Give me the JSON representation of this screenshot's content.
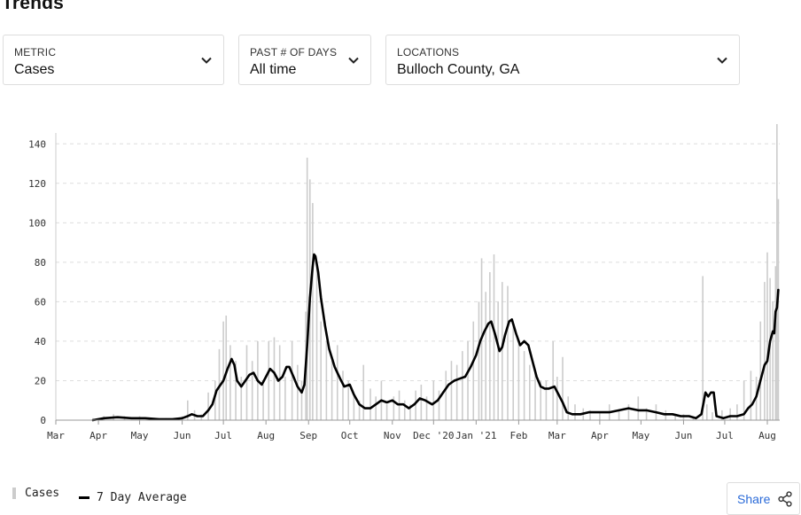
{
  "page": {
    "title": "Trends"
  },
  "filters": {
    "metric": {
      "label": "METRIC",
      "value": "Cases"
    },
    "days": {
      "label": "PAST # OF DAYS",
      "value": "All time"
    },
    "locations": {
      "label": "LOCATIONS",
      "value": "Bulloch County, GA"
    }
  },
  "legend": {
    "cases": "Cases",
    "avg": "7 Day Average"
  },
  "share": {
    "label": "Share"
  },
  "icons": {
    "dropdown": "chevron-down-icon",
    "share": "share-icon"
  },
  "colors": {
    "bars": "#cccccc",
    "line": "#000000",
    "share_text": "#2a6ad8",
    "grid": "#dddddd"
  },
  "chart_data": {
    "type": "bar",
    "title": "",
    "xlabel": "",
    "ylabel": "",
    "ylim": [
      0,
      150
    ],
    "grid": true,
    "legend_position": "bottom-left",
    "y_ticks": [
      0,
      20,
      40,
      60,
      80,
      100,
      120,
      140
    ],
    "x_ticks": [
      {
        "label": "Mar",
        "date": "2020-03-01"
      },
      {
        "label": "Apr",
        "date": "2020-04-01"
      },
      {
        "label": "May",
        "date": "2020-05-01"
      },
      {
        "label": "Jun",
        "date": "2020-06-01"
      },
      {
        "label": "Jul",
        "date": "2020-07-01"
      },
      {
        "label": "Aug",
        "date": "2020-08-01"
      },
      {
        "label": "Sep",
        "date": "2020-09-01"
      },
      {
        "label": "Oct",
        "date": "2020-10-01"
      },
      {
        "label": "Nov",
        "date": "2020-11-01"
      },
      {
        "label": "Dec '20",
        "date": "2020-12-01"
      },
      {
        "label": "Jan '21",
        "date": "2021-01-01"
      },
      {
        "label": "Feb",
        "date": "2021-02-01"
      },
      {
        "label": "Mar",
        "date": "2021-03-01"
      },
      {
        "label": "Apr",
        "date": "2021-04-01"
      },
      {
        "label": "May",
        "date": "2021-05-01"
      },
      {
        "label": "Jun",
        "date": "2021-06-01"
      },
      {
        "label": "Jul",
        "date": "2021-07-01"
      },
      {
        "label": "Aug",
        "date": "2021-08-01"
      }
    ],
    "series": [
      {
        "name": "Cases",
        "type": "bar",
        "points": [
          [
            "2020-03-28",
            1
          ],
          [
            "2020-04-05",
            2
          ],
          [
            "2020-04-12",
            3
          ],
          [
            "2020-04-20",
            2
          ],
          [
            "2020-05-01",
            2
          ],
          [
            "2020-05-10",
            1
          ],
          [
            "2020-05-20",
            1
          ],
          [
            "2020-06-01",
            2
          ],
          [
            "2020-06-05",
            10
          ],
          [
            "2020-06-10",
            5
          ],
          [
            "2020-06-15",
            3
          ],
          [
            "2020-06-20",
            14
          ],
          [
            "2020-06-25",
            20
          ],
          [
            "2020-06-28",
            36
          ],
          [
            "2020-07-01",
            50
          ],
          [
            "2020-07-03",
            53
          ],
          [
            "2020-07-06",
            38
          ],
          [
            "2020-07-10",
            30
          ],
          [
            "2020-07-14",
            22
          ],
          [
            "2020-07-18",
            38
          ],
          [
            "2020-07-22",
            30
          ],
          [
            "2020-07-26",
            40
          ],
          [
            "2020-07-30",
            18
          ],
          [
            "2020-08-03",
            40
          ],
          [
            "2020-08-07",
            42
          ],
          [
            "2020-08-11",
            38
          ],
          [
            "2020-08-15",
            22
          ],
          [
            "2020-08-20",
            40
          ],
          [
            "2020-08-24",
            28
          ],
          [
            "2020-08-27",
            20
          ],
          [
            "2020-08-30",
            55
          ],
          [
            "2020-08-31",
            133
          ],
          [
            "2020-09-02",
            122
          ],
          [
            "2020-09-04",
            110
          ],
          [
            "2020-09-07",
            80
          ],
          [
            "2020-09-10",
            50
          ],
          [
            "2020-09-14",
            40
          ],
          [
            "2020-09-18",
            30
          ],
          [
            "2020-09-22",
            38
          ],
          [
            "2020-09-26",
            25
          ],
          [
            "2020-09-30",
            20
          ],
          [
            "2020-10-04",
            12
          ],
          [
            "2020-10-08",
            10
          ],
          [
            "2020-10-11",
            28
          ],
          [
            "2020-10-16",
            16
          ],
          [
            "2020-10-20",
            12
          ],
          [
            "2020-10-24",
            20
          ],
          [
            "2020-10-28",
            8
          ],
          [
            "2020-11-02",
            12
          ],
          [
            "2020-11-06",
            15
          ],
          [
            "2020-11-10",
            10
          ],
          [
            "2020-11-14",
            8
          ],
          [
            "2020-11-18",
            15
          ],
          [
            "2020-11-22",
            18
          ],
          [
            "2020-11-26",
            12
          ],
          [
            "2020-12-01",
            20
          ],
          [
            "2020-12-05",
            15
          ],
          [
            "2020-12-10",
            25
          ],
          [
            "2020-12-14",
            30
          ],
          [
            "2020-12-18",
            28
          ],
          [
            "2020-12-22",
            35
          ],
          [
            "2020-12-26",
            40
          ],
          [
            "2020-12-30",
            50
          ],
          [
            "2021-01-03",
            60
          ],
          [
            "2021-01-05",
            82
          ],
          [
            "2021-01-08",
            65
          ],
          [
            "2021-01-11",
            75
          ],
          [
            "2021-01-14",
            84
          ],
          [
            "2021-01-17",
            60
          ],
          [
            "2021-01-20",
            70
          ],
          [
            "2021-01-24",
            68
          ],
          [
            "2021-01-28",
            48
          ],
          [
            "2021-02-01",
            40
          ],
          [
            "2021-02-05",
            35
          ],
          [
            "2021-02-09",
            28
          ],
          [
            "2021-02-13",
            25
          ],
          [
            "2021-02-17",
            20
          ],
          [
            "2021-02-21",
            20
          ],
          [
            "2021-02-26",
            40
          ],
          [
            "2021-03-01",
            22
          ],
          [
            "2021-03-05",
            32
          ],
          [
            "2021-03-09",
            12
          ],
          [
            "2021-03-14",
            8
          ],
          [
            "2021-03-20",
            6
          ],
          [
            "2021-03-25",
            5
          ],
          [
            "2021-04-01",
            4
          ],
          [
            "2021-04-08",
            8
          ],
          [
            "2021-04-15",
            5
          ],
          [
            "2021-04-22",
            8
          ],
          [
            "2021-04-29",
            12
          ],
          [
            "2021-05-05",
            6
          ],
          [
            "2021-05-12",
            8
          ],
          [
            "2021-05-19",
            5
          ],
          [
            "2021-05-26",
            3
          ],
          [
            "2021-06-01",
            3
          ],
          [
            "2021-06-08",
            2
          ],
          [
            "2021-06-15",
            73
          ],
          [
            "2021-06-18",
            8
          ],
          [
            "2021-06-22",
            4
          ],
          [
            "2021-06-29",
            5
          ],
          [
            "2021-07-05",
            6
          ],
          [
            "2021-07-10",
            8
          ],
          [
            "2021-07-15",
            20
          ],
          [
            "2021-07-20",
            25
          ],
          [
            "2021-07-24",
            22
          ],
          [
            "2021-07-27",
            50
          ],
          [
            "2021-07-30",
            70
          ],
          [
            "2021-08-01",
            85
          ],
          [
            "2021-08-03",
            72
          ],
          [
            "2021-08-05",
            60
          ],
          [
            "2021-08-07",
            78
          ],
          [
            "2021-08-08",
            150
          ],
          [
            "2021-08-09",
            112
          ]
        ]
      },
      {
        "name": "7 Day Average",
        "type": "line",
        "points": [
          [
            "2020-03-28",
            0
          ],
          [
            "2020-04-05",
            1
          ],
          [
            "2020-04-15",
            1.5
          ],
          [
            "2020-04-25",
            1
          ],
          [
            "2020-05-05",
            1
          ],
          [
            "2020-05-15",
            0.5
          ],
          [
            "2020-05-25",
            0.5
          ],
          [
            "2020-06-01",
            1
          ],
          [
            "2020-06-05",
            2
          ],
          [
            "2020-06-08",
            3
          ],
          [
            "2020-06-12",
            2
          ],
          [
            "2020-06-16",
            2
          ],
          [
            "2020-06-20",
            5
          ],
          [
            "2020-06-23",
            8
          ],
          [
            "2020-06-26",
            15
          ],
          [
            "2020-06-29",
            18
          ],
          [
            "2020-07-01",
            20
          ],
          [
            "2020-07-04",
            26
          ],
          [
            "2020-07-07",
            31
          ],
          [
            "2020-07-09",
            28
          ],
          [
            "2020-07-11",
            20
          ],
          [
            "2020-07-14",
            17
          ],
          [
            "2020-07-17",
            20
          ],
          [
            "2020-07-20",
            23
          ],
          [
            "2020-07-23",
            24
          ],
          [
            "2020-07-26",
            20
          ],
          [
            "2020-07-29",
            18
          ],
          [
            "2020-08-01",
            22
          ],
          [
            "2020-08-04",
            26
          ],
          [
            "2020-08-07",
            24
          ],
          [
            "2020-08-10",
            20
          ],
          [
            "2020-08-13",
            22
          ],
          [
            "2020-08-16",
            27
          ],
          [
            "2020-08-18",
            27
          ],
          [
            "2020-08-21",
            22
          ],
          [
            "2020-08-24",
            17
          ],
          [
            "2020-08-27",
            14
          ],
          [
            "2020-08-29",
            18
          ],
          [
            "2020-08-31",
            38
          ],
          [
            "2020-09-02",
            62
          ],
          [
            "2020-09-04",
            78
          ],
          [
            "2020-09-05",
            84
          ],
          [
            "2020-09-06",
            83
          ],
          [
            "2020-09-08",
            75
          ],
          [
            "2020-09-10",
            62
          ],
          [
            "2020-09-13",
            48
          ],
          [
            "2020-09-16",
            36
          ],
          [
            "2020-09-20",
            27
          ],
          [
            "2020-09-24",
            21
          ],
          [
            "2020-09-27",
            17
          ],
          [
            "2020-10-01",
            18
          ],
          [
            "2020-10-04",
            13
          ],
          [
            "2020-10-08",
            8
          ],
          [
            "2020-10-12",
            6
          ],
          [
            "2020-10-16",
            6
          ],
          [
            "2020-10-20",
            8
          ],
          [
            "2020-10-24",
            10
          ],
          [
            "2020-10-28",
            9
          ],
          [
            "2020-11-01",
            10
          ],
          [
            "2020-11-05",
            8
          ],
          [
            "2020-11-09",
            8
          ],
          [
            "2020-11-13",
            6
          ],
          [
            "2020-11-17",
            8
          ],
          [
            "2020-11-21",
            11
          ],
          [
            "2020-11-25",
            10
          ],
          [
            "2020-11-30",
            8
          ],
          [
            "2020-12-04",
            10
          ],
          [
            "2020-12-08",
            14
          ],
          [
            "2020-12-12",
            18
          ],
          [
            "2020-12-16",
            20
          ],
          [
            "2020-12-20",
            21
          ],
          [
            "2020-12-24",
            22
          ],
          [
            "2020-12-28",
            27
          ],
          [
            "2021-01-01",
            33
          ],
          [
            "2021-01-04",
            40
          ],
          [
            "2021-01-07",
            45
          ],
          [
            "2021-01-10",
            49
          ],
          [
            "2021-01-12",
            50
          ],
          [
            "2021-01-15",
            43
          ],
          [
            "2021-01-18",
            35
          ],
          [
            "2021-01-20",
            37
          ],
          [
            "2021-01-22",
            43
          ],
          [
            "2021-01-25",
            50
          ],
          [
            "2021-01-27",
            51
          ],
          [
            "2021-01-30",
            44
          ],
          [
            "2021-02-02",
            38
          ],
          [
            "2021-02-05",
            40
          ],
          [
            "2021-02-08",
            38
          ],
          [
            "2021-02-11",
            30
          ],
          [
            "2021-02-14",
            22
          ],
          [
            "2021-02-17",
            17
          ],
          [
            "2021-02-20",
            16
          ],
          [
            "2021-02-23",
            16
          ],
          [
            "2021-02-27",
            17
          ],
          [
            "2021-03-02",
            13
          ],
          [
            "2021-03-05",
            9
          ],
          [
            "2021-03-08",
            4
          ],
          [
            "2021-03-12",
            3
          ],
          [
            "2021-03-18",
            3
          ],
          [
            "2021-03-24",
            4
          ],
          [
            "2021-04-01",
            4
          ],
          [
            "2021-04-08",
            4
          ],
          [
            "2021-04-15",
            5
          ],
          [
            "2021-04-22",
            6
          ],
          [
            "2021-04-29",
            5
          ],
          [
            "2021-05-05",
            5
          ],
          [
            "2021-05-12",
            4
          ],
          [
            "2021-05-18",
            3
          ],
          [
            "2021-05-24",
            3
          ],
          [
            "2021-05-30",
            2
          ],
          [
            "2021-06-05",
            2
          ],
          [
            "2021-06-10",
            1
          ],
          [
            "2021-06-14",
            3
          ],
          [
            "2021-06-17",
            14
          ],
          [
            "2021-06-19",
            12
          ],
          [
            "2021-06-21",
            14
          ],
          [
            "2021-06-23",
            14
          ],
          [
            "2021-06-25",
            2
          ],
          [
            "2021-06-30",
            1
          ],
          [
            "2021-07-05",
            2
          ],
          [
            "2021-07-10",
            2
          ],
          [
            "2021-07-15",
            3
          ],
          [
            "2021-07-18",
            6
          ],
          [
            "2021-07-21",
            8
          ],
          [
            "2021-07-24",
            12
          ],
          [
            "2021-07-27",
            20
          ],
          [
            "2021-07-30",
            28
          ],
          [
            "2021-08-01",
            30
          ],
          [
            "2021-08-03",
            40
          ],
          [
            "2021-08-05",
            45
          ],
          [
            "2021-08-06",
            44
          ],
          [
            "2021-08-07",
            55
          ],
          [
            "2021-08-08",
            57
          ],
          [
            "2021-08-09",
            66
          ]
        ]
      }
    ]
  }
}
